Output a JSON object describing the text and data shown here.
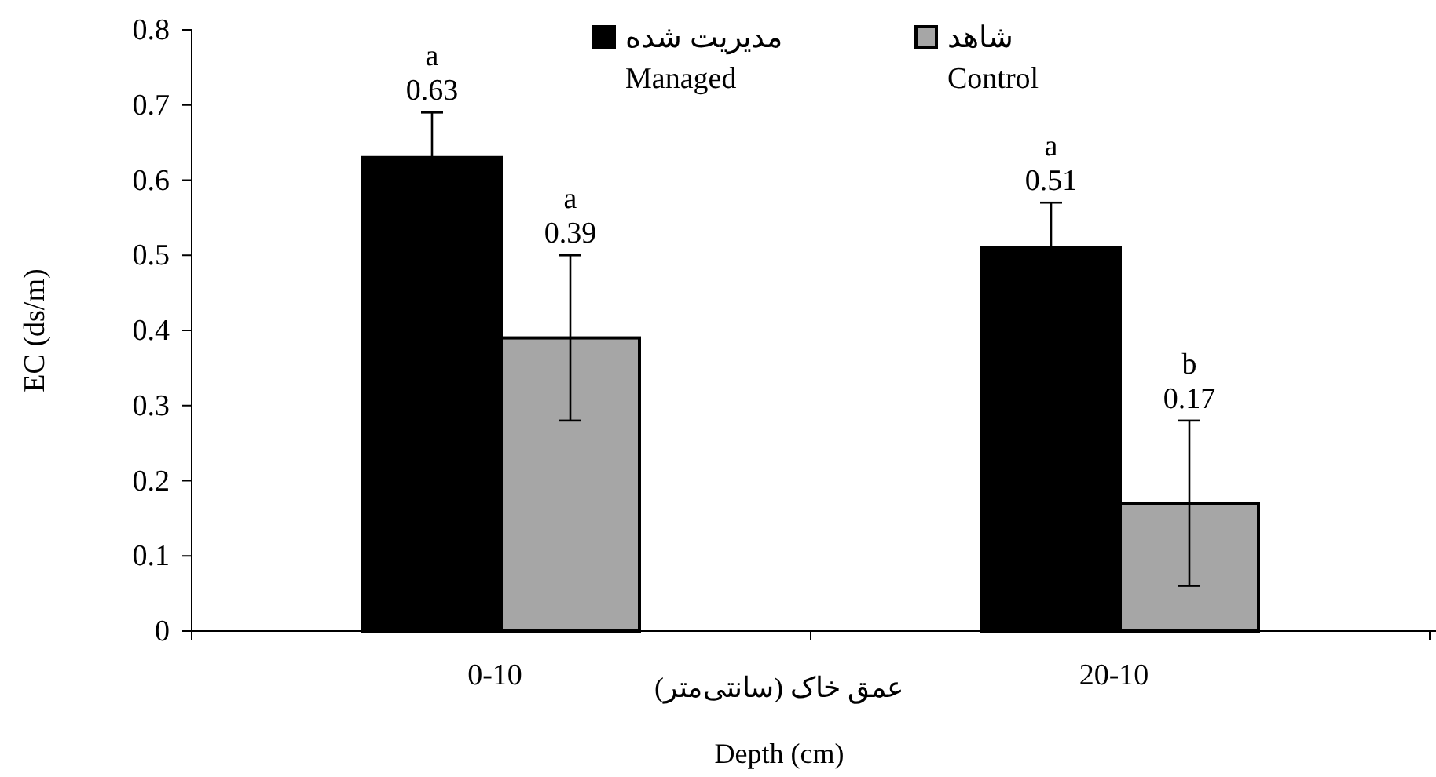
{
  "chart_data": {
    "type": "bar",
    "ylabel": "EC (ds/m)",
    "xlabel": "عمق خاک (سانتی‌متر)\nDepth (cm)",
    "categories": [
      "0-10",
      "20-10"
    ],
    "series": [
      {
        "name": "مدیریت شده\nManaged",
        "color": "#000000",
        "values": [
          0.63,
          0.51
        ],
        "errors": [
          0.06,
          0.06
        ]
      },
      {
        "name": "شاهد\nControl",
        "color": "#a6a6a6",
        "values": [
          0.39,
          0.17
        ],
        "errors": [
          0.11,
          0.11
        ]
      }
    ],
    "annotations": [
      "a",
      "a",
      "a",
      "b"
    ],
    "data_labels": true,
    "ylim": [
      0,
      0.8
    ],
    "yticks": [
      0,
      0.1,
      0.2,
      0.3,
      0.4,
      0.5,
      0.6,
      0.7,
      0.8
    ],
    "grid": false,
    "legend": "top"
  }
}
